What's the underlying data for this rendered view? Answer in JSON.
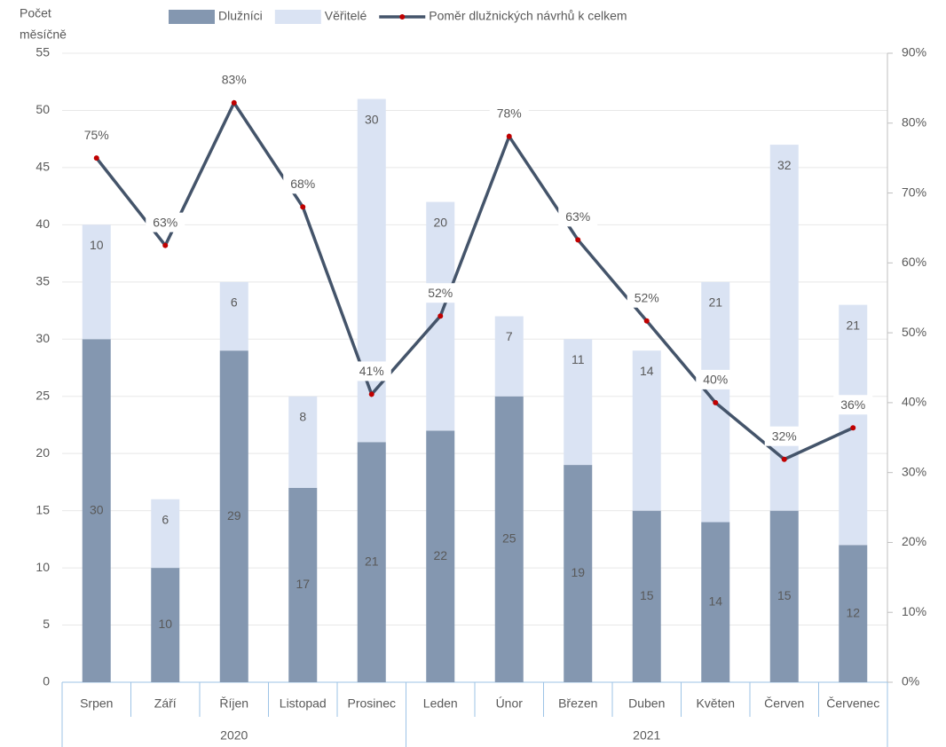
{
  "chart_data": {
    "type": "stacked_bar_line",
    "y_label": [
      "Počet",
      "měsíčně"
    ],
    "categories": [
      "Srpen",
      "Září",
      "Říjen",
      "Listopad",
      "Prosinec",
      "Leden",
      "Únor",
      "Březen",
      "Duben",
      "Květen",
      "Červen",
      "Červenec"
    ],
    "groups": [
      {
        "name": "2020",
        "span": 5
      },
      {
        "name": "2021",
        "span": 7
      }
    ],
    "series": [
      {
        "name": "Dlužníci",
        "color": "#8497b0",
        "type": "bar",
        "values": [
          30,
          10,
          29,
          17,
          21,
          22,
          25,
          19,
          15,
          14,
          15,
          12
        ]
      },
      {
        "name": "Věřitelé",
        "color": "#dae3f3",
        "type": "bar",
        "values": [
          10,
          6,
          6,
          8,
          30,
          20,
          7,
          11,
          14,
          21,
          32,
          21
        ]
      },
      {
        "name": "Poměr dlužnických návrhů k celkem",
        "color": "#44546a",
        "marker_color": "#c00000",
        "type": "line",
        "axis": "y2",
        "values": [
          75,
          62.5,
          82.9,
          68,
          41.2,
          52.4,
          78.1,
          63.3,
          51.7,
          40,
          31.9,
          36.4
        ],
        "value_labels": [
          "75%",
          "63%",
          "83%",
          "68%",
          "41%",
          "52%",
          "78%",
          "63%",
          "52%",
          "40%",
          "32%",
          "36%"
        ]
      }
    ],
    "ylim": [
      0,
      55
    ],
    "yticks": [
      0,
      5,
      10,
      15,
      20,
      25,
      30,
      35,
      40,
      45,
      50,
      55
    ],
    "y2lim": [
      0,
      90
    ],
    "y2ticks": [
      {
        "value": 0,
        "label": "0%"
      },
      {
        "value": 10,
        "label": "10%"
      },
      {
        "value": 20,
        "label": "20%"
      },
      {
        "value": 30,
        "label": "30%"
      },
      {
        "value": 40,
        "label": "40%"
      },
      {
        "value": 50,
        "label": "50%"
      },
      {
        "value": 60,
        "label": "60%"
      },
      {
        "value": 70,
        "label": "70%"
      },
      {
        "value": 80,
        "label": "80%"
      },
      {
        "value": 90,
        "label": "90%"
      }
    ],
    "grid": true,
    "legend": "top"
  }
}
